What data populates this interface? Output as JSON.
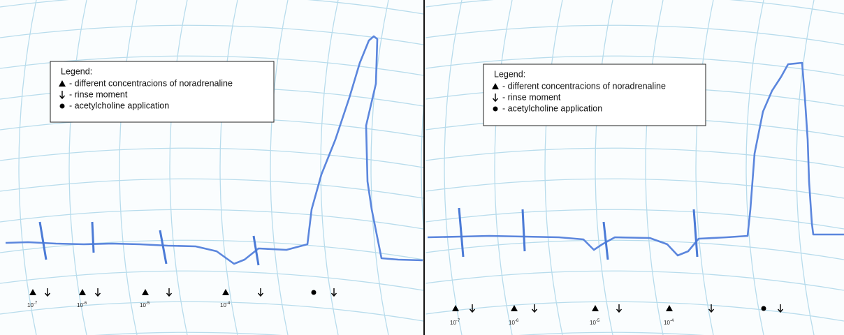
{
  "panels": [
    {
      "legend": {
        "title": "Legend:",
        "items": [
          "- different concentracions of noradrenaline",
          "- rinse moment",
          "- acetylcholine application"
        ]
      },
      "labels": [
        {
          "base": "10",
          "exp": "-7"
        },
        {
          "base": "10",
          "exp": "-6"
        },
        {
          "base": "10",
          "exp": "-5"
        },
        {
          "base": "10",
          "exp": "-4"
        }
      ]
    },
    {
      "legend": {
        "title": "Legend:",
        "items": [
          "- different concentracions of noradrenaline",
          "- rinse moment",
          "- acetylcholine application"
        ]
      },
      "labels": [
        {
          "base": "10",
          "exp": "-7"
        },
        {
          "base": "10",
          "exp": "-6"
        },
        {
          "base": "10",
          "exp": "-5"
        },
        {
          "base": "10",
          "exp": "-4"
        }
      ]
    }
  ]
}
